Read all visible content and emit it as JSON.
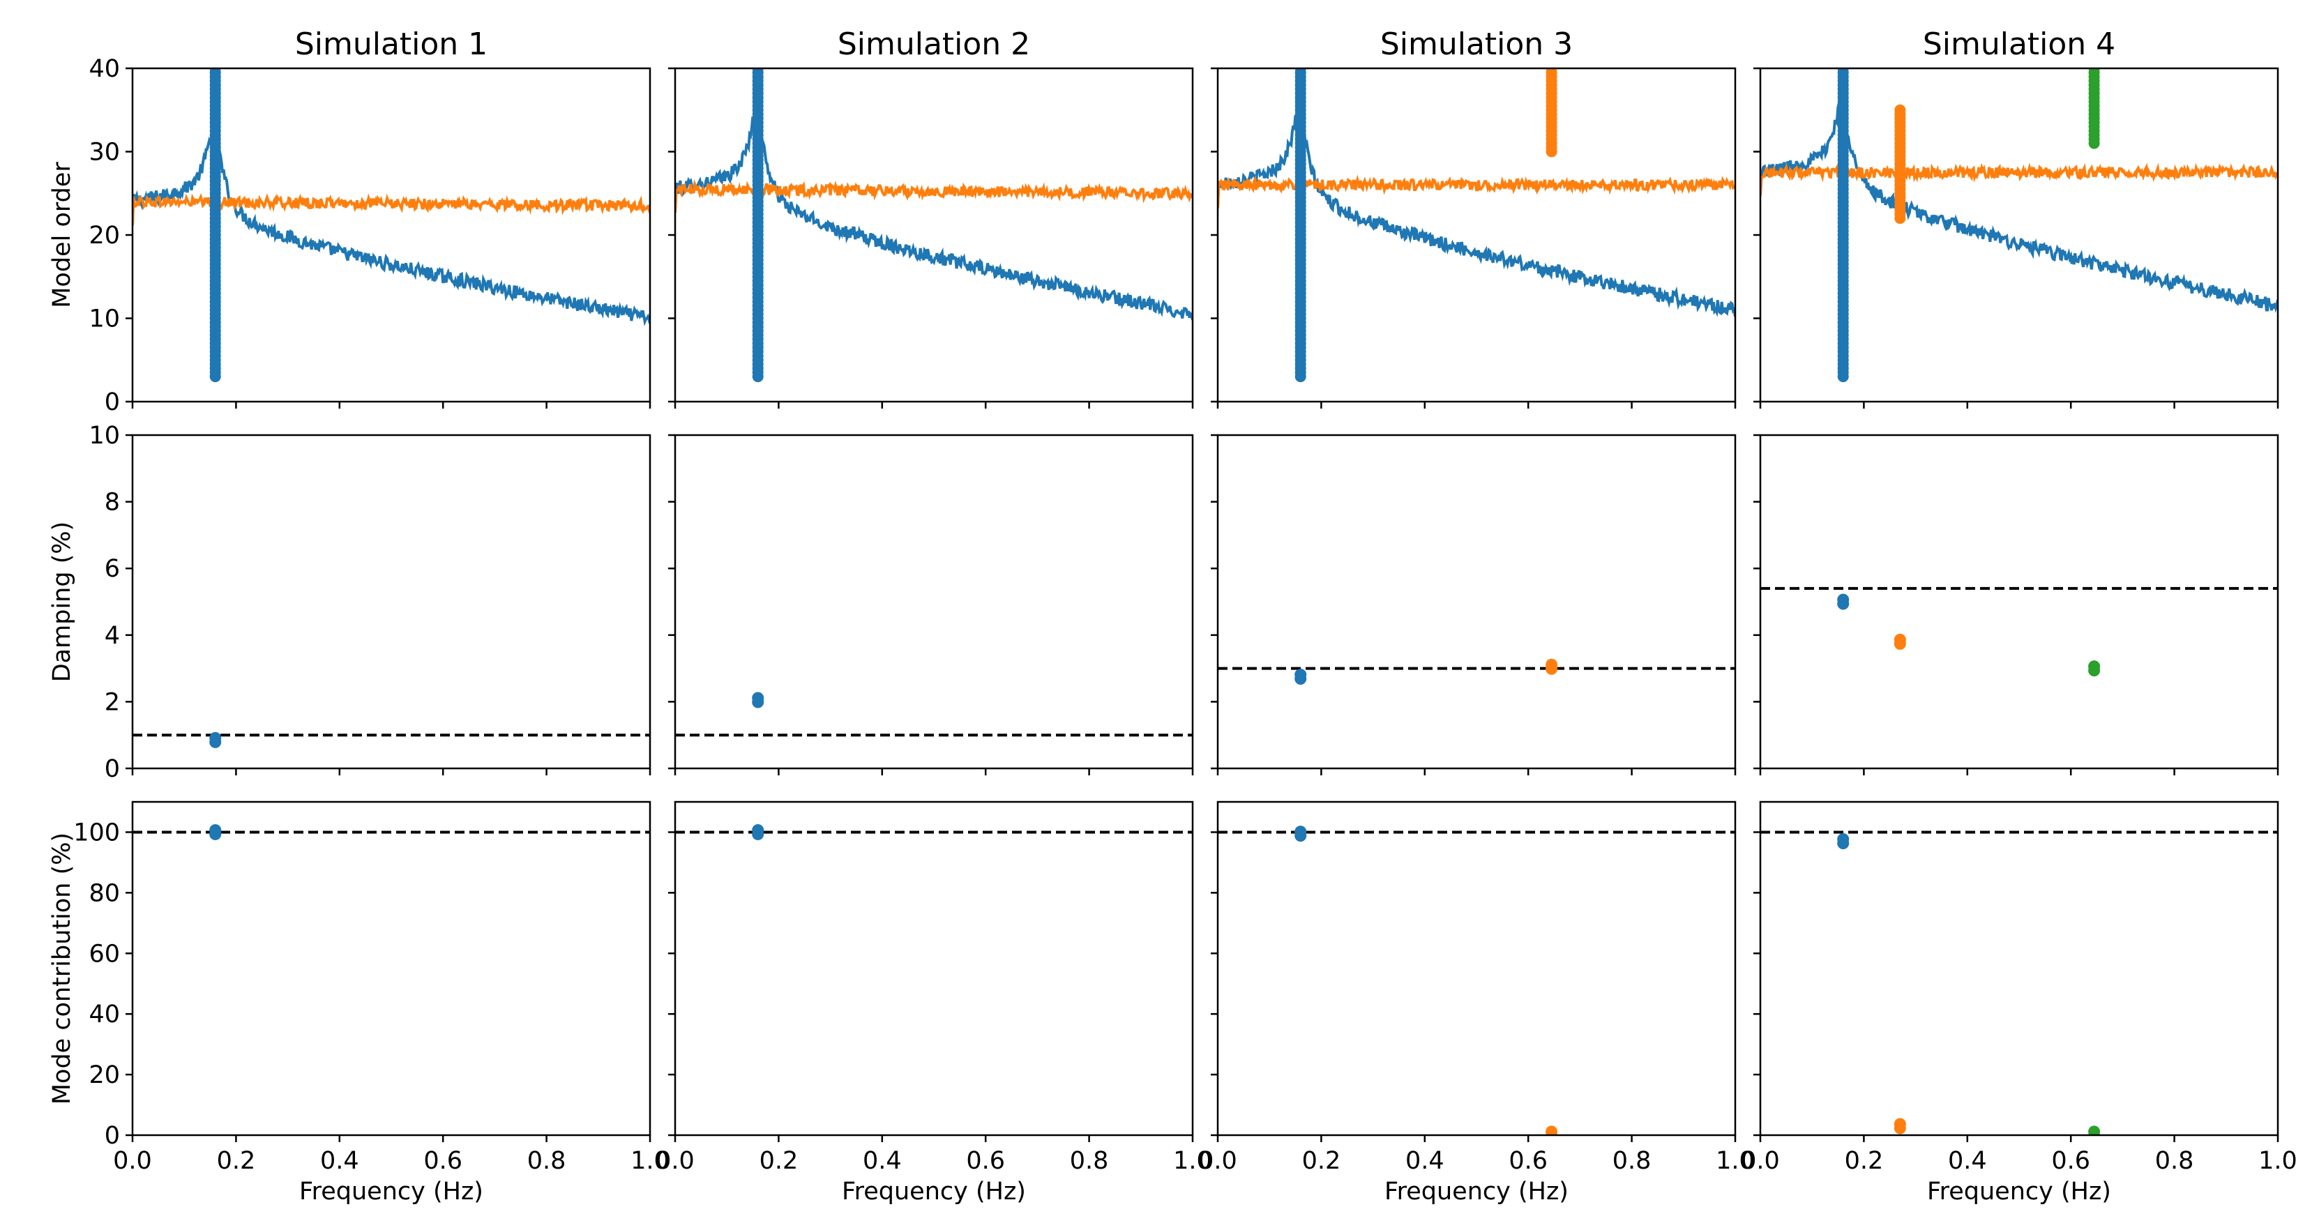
{
  "figure": {
    "xlabel": "Frequency (Hz)",
    "row_ylabels": [
      "Model order",
      "Damping (%)",
      "Mode contribution (%)"
    ],
    "colors": {
      "blue": "#1f77b4",
      "orange": "#ff7f0e",
      "green": "#2ca02c",
      "ref": "#000000"
    }
  },
  "chart_data": [
    {
      "type": "scatter",
      "title": "Simulation 1",
      "xlim": [
        0,
        1
      ],
      "xticks": [
        "0.0",
        "0.2",
        "0.4",
        "0.6",
        "0.8",
        "1.0"
      ],
      "rows": {
        "stabilization": {
          "ylabel": "Model order",
          "ylim": [
            0,
            40
          ],
          "yticks": [
            "0",
            "10",
            "20",
            "30",
            "40"
          ],
          "psd_lines": [
            {
              "color": "blue",
              "base": 24,
              "peak": 33,
              "end": 10,
              "noise": 0.5
            },
            {
              "color": "orange",
              "base": 24,
              "peak": 24,
              "end": 23.5,
              "noise": 0.4
            }
          ],
          "pole_columns": [
            {
              "color": "blue",
              "x": 0.16,
              "ymin": 3,
              "ymax": 40
            }
          ]
        },
        "damping": {
          "ylabel": "Damping (%)",
          "ylim": [
            0,
            10
          ],
          "yticks": [
            "0",
            "2",
            "4",
            "6",
            "8",
            "10"
          ],
          "ref": 1.0,
          "points": [
            {
              "color": "blue",
              "x": 0.16,
              "y": 0.85
            }
          ]
        },
        "contribution": {
          "ylabel": "Mode contribution (%)",
          "ylim": [
            0,
            110
          ],
          "yticks": [
            "0",
            "20",
            "40",
            "60",
            "80",
            "100"
          ],
          "ref": 100,
          "points": [
            {
              "color": "blue",
              "x": 0.16,
              "y": 100
            }
          ]
        }
      }
    },
    {
      "type": "scatter",
      "title": "Simulation 2",
      "xlim": [
        0,
        1
      ],
      "xticks": [
        "0.0",
        "0.2",
        "0.4",
        "0.6",
        "0.8",
        "1.0"
      ],
      "rows": {
        "stabilization": {
          "ylabel": "Model order",
          "ylim": [
            0,
            40
          ],
          "yticks": [
            "0",
            "10",
            "20",
            "30",
            "40"
          ],
          "psd_lines": [
            {
              "color": "blue",
              "base": 25.5,
              "peak": 35,
              "end": 10.5,
              "noise": 0.5
            },
            {
              "color": "orange",
              "base": 25.5,
              "peak": 25.5,
              "end": 25,
              "noise": 0.4
            }
          ],
          "pole_columns": [
            {
              "color": "blue",
              "x": 0.16,
              "ymin": 3,
              "ymax": 40
            }
          ]
        },
        "damping": {
          "ylabel": "Damping (%)",
          "ylim": [
            0,
            10
          ],
          "yticks": [
            "0",
            "2",
            "4",
            "6",
            "8",
            "10"
          ],
          "ref": 1.0,
          "points": [
            {
              "color": "blue",
              "x": 0.16,
              "y": 2.05
            }
          ]
        },
        "contribution": {
          "ylabel": "Mode contribution (%)",
          "ylim": [
            0,
            110
          ],
          "yticks": [
            "0",
            "20",
            "40",
            "60",
            "80",
            "100"
          ],
          "ref": 100,
          "points": [
            {
              "color": "blue",
              "x": 0.16,
              "y": 100
            }
          ]
        }
      }
    },
    {
      "type": "scatter",
      "title": "Simulation 3",
      "xlim": [
        0,
        1
      ],
      "xticks": [
        "0.0",
        "0.2",
        "0.4",
        "0.6",
        "0.8",
        "1.0"
      ],
      "rows": {
        "stabilization": {
          "ylabel": "Model order",
          "ylim": [
            0,
            40
          ],
          "yticks": [
            "0",
            "10",
            "20",
            "30",
            "40"
          ],
          "psd_lines": [
            {
              "color": "blue",
              "base": 26,
              "peak": 35,
              "end": 11,
              "noise": 0.5
            },
            {
              "color": "orange",
              "base": 26,
              "peak": 26,
              "end": 26,
              "noise": 0.4
            }
          ],
          "pole_columns": [
            {
              "color": "blue",
              "x": 0.16,
              "ymin": 3,
              "ymax": 40
            },
            {
              "color": "orange",
              "x": 0.645,
              "ymin": 30,
              "ymax": 40
            }
          ]
        },
        "damping": {
          "ylabel": "Damping (%)",
          "ylim": [
            0,
            10
          ],
          "yticks": [
            "0",
            "2",
            "4",
            "6",
            "8",
            "10"
          ],
          "ref": 3.0,
          "points": [
            {
              "color": "blue",
              "x": 0.16,
              "y": 2.75
            },
            {
              "color": "orange",
              "x": 0.645,
              "y": 3.05
            }
          ]
        },
        "contribution": {
          "ylabel": "Mode contribution (%)",
          "ylim": [
            0,
            110
          ],
          "yticks": [
            "0",
            "20",
            "40",
            "60",
            "80",
            "100"
          ],
          "ref": 100,
          "points": [
            {
              "color": "blue",
              "x": 0.16,
              "y": 99.5
            },
            {
              "color": "orange",
              "x": 0.645,
              "y": 0.5
            }
          ]
        }
      }
    },
    {
      "type": "scatter",
      "title": "Simulation 4",
      "xlim": [
        0,
        1
      ],
      "xticks": [
        "0.0",
        "0.2",
        "0.4",
        "0.6",
        "0.8",
        "1.0"
      ],
      "rows": {
        "stabilization": {
          "ylabel": "Model order",
          "ylim": [
            0,
            40
          ],
          "yticks": [
            "0",
            "10",
            "20",
            "30",
            "40"
          ],
          "psd_lines": [
            {
              "color": "blue",
              "base": 27.5,
              "peak": 36,
              "end": 11.5,
              "noise": 0.5
            },
            {
              "color": "orange",
              "base": 27.5,
              "peak": 27.5,
              "end": 27.5,
              "noise": 0.4
            }
          ],
          "pole_columns": [
            {
              "color": "blue",
              "x": 0.16,
              "ymin": 3,
              "ymax": 40
            },
            {
              "color": "orange",
              "x": 0.27,
              "ymin": 22,
              "ymax": 35
            },
            {
              "color": "green",
              "x": 0.645,
              "ymin": 31,
              "ymax": 40
            }
          ]
        },
        "damping": {
          "ylabel": "Damping (%)",
          "ylim": [
            0,
            10
          ],
          "yticks": [
            "0",
            "2",
            "4",
            "6",
            "8",
            "10"
          ],
          "ref": 5.4,
          "points": [
            {
              "color": "blue",
              "x": 0.16,
              "y": 5.0
            },
            {
              "color": "orange",
              "x": 0.27,
              "y": 3.8
            },
            {
              "color": "green",
              "x": 0.645,
              "y": 3.0
            }
          ]
        },
        "contribution": {
          "ylabel": "Mode contribution (%)",
          "ylim": [
            0,
            110
          ],
          "yticks": [
            "0",
            "20",
            "40",
            "60",
            "80",
            "100"
          ],
          "ref": 100,
          "points": [
            {
              "color": "blue",
              "x": 0.16,
              "y": 97
            },
            {
              "color": "orange",
              "x": 0.27,
              "y": 3
            },
            {
              "color": "green",
              "x": 0.645,
              "y": 0.5
            }
          ]
        }
      }
    }
  ]
}
